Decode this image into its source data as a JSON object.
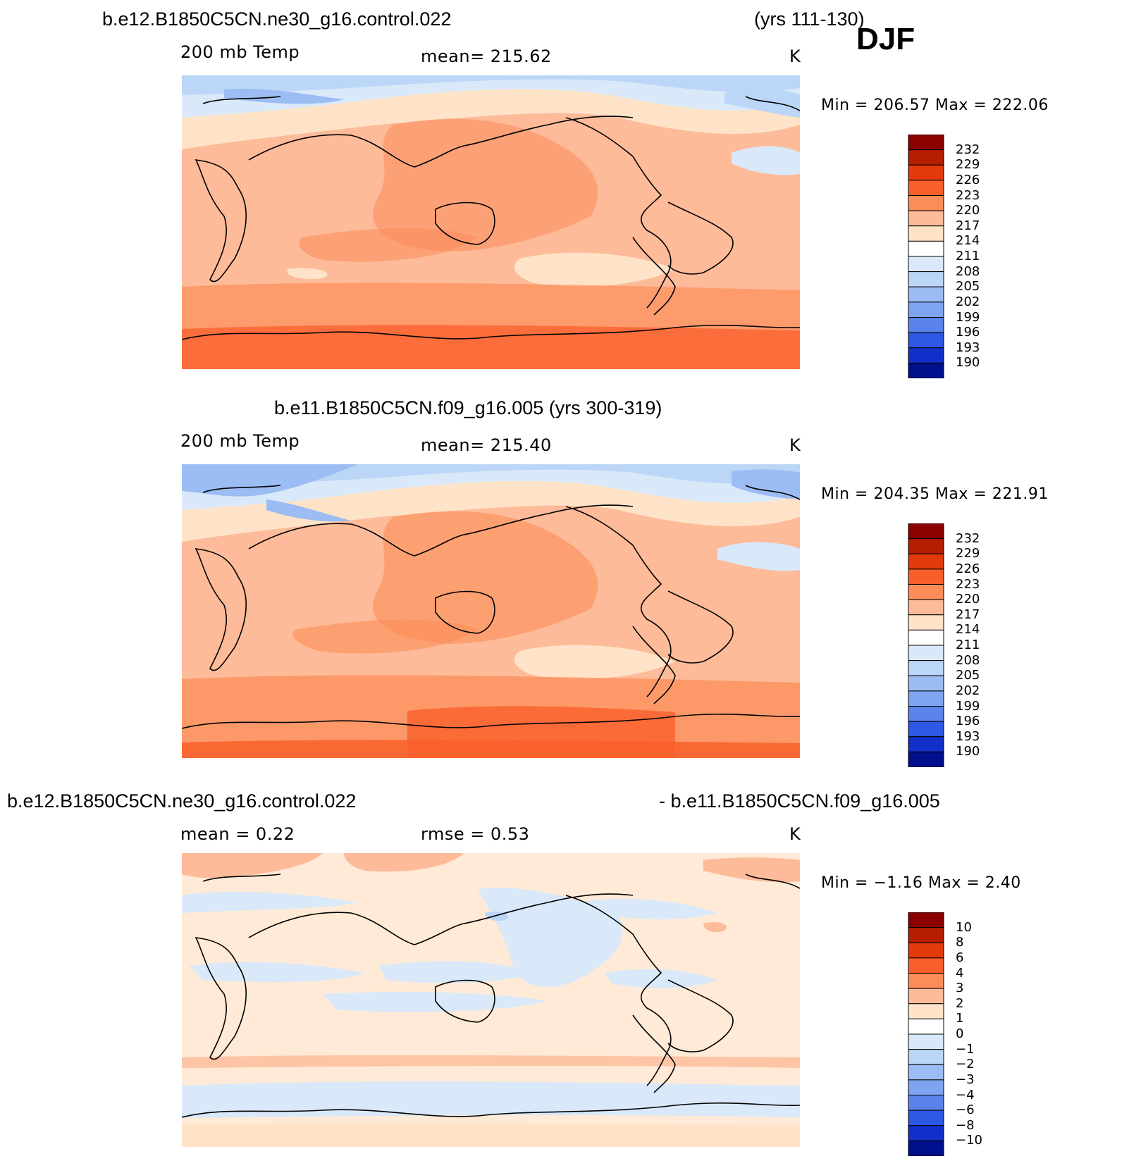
{
  "season": "DJF",
  "panels": [
    {
      "title": "b.e12.B1850C5CN.ne30_g16.control.022",
      "years": "(yrs 111-130)",
      "variable": "200 mb Temp",
      "mean_text": "mean=  215.62",
      "units": "K",
      "minmax_text": "Min  =  206.57  Max  =  222.06"
    },
    {
      "title": "b.e11.B1850C5CN.f09_g16.005 (yrs 300-319)",
      "variable": "200 mb Temp",
      "mean_text": "mean=  215.40",
      "units": "K",
      "minmax_text": "Min  =  204.35  Max  =  221.91"
    },
    {
      "title_left": "b.e12.B1850C5CN.ne30_g16.control.022",
      "title_right": "- b.e11.B1850C5CN.f09_g16.005",
      "mean_text": "mean  =     0.22",
      "rmse_text": "rmse  =     0.53",
      "units": "K",
      "minmax_text": "Min  =    −1.16  Max  =     2.40"
    }
  ],
  "chart_data": [
    {
      "type": "heatmap",
      "title": "b.e12.B1850C5CN.ne30_g16.control.022 (yrs 111-130) DJF",
      "subtitle": "200 mb Temp",
      "units": "K",
      "mean": 215.62,
      "min": 206.57,
      "max": 222.06,
      "colorbar_levels": [
        "232",
        "229",
        "226",
        "223",
        "220",
        "217",
        "214",
        "211",
        "208",
        "205",
        "202",
        "199",
        "196",
        "193",
        "190"
      ],
      "colorbar_colors": [
        "#8b0000",
        "#b51e00",
        "#e23a0a",
        "#f95f2b",
        "#fc8d59",
        "#fdbb99",
        "#fee3c8",
        "#ffffff",
        "#d9e9f9",
        "#bcd6f7",
        "#9cbdf3",
        "#7ea4f0",
        "#5a83ec",
        "#2e57e3",
        "#1130c9",
        "#000f8b"
      ]
    },
    {
      "type": "heatmap",
      "title": "b.e11.B1850C5CN.f09_g16.005 (yrs 300-319)",
      "subtitle": "200 mb Temp",
      "units": "K",
      "mean": 215.4,
      "min": 204.35,
      "max": 221.91,
      "colorbar_levels": [
        "232",
        "229",
        "226",
        "223",
        "220",
        "217",
        "214",
        "211",
        "208",
        "205",
        "202",
        "199",
        "196",
        "193",
        "190"
      ],
      "colorbar_colors": [
        "#8b0000",
        "#b51e00",
        "#e23a0a",
        "#f95f2b",
        "#fc8d59",
        "#fdbb99",
        "#fee3c8",
        "#ffffff",
        "#d9e9f9",
        "#bcd6f7",
        "#9cbdf3",
        "#7ea4f0",
        "#5a83ec",
        "#2e57e3",
        "#1130c9",
        "#000f8b"
      ]
    },
    {
      "type": "heatmap",
      "title": "b.e12.B1850C5CN.ne30_g16.control.022 - b.e11.B1850C5CN.f09_g16.005",
      "units": "K",
      "mean": 0.22,
      "rmse": 0.53,
      "min": -1.16,
      "max": 2.4,
      "colorbar_levels": [
        "10",
        "8",
        "6",
        "4",
        "3",
        "2",
        "1",
        "0",
        "−1",
        "−2",
        "−3",
        "−4",
        "−6",
        "−8",
        "−10"
      ],
      "colorbar_colors": [
        "#8b0000",
        "#b51e00",
        "#e23a0a",
        "#f95f2b",
        "#fc8d59",
        "#fdbb99",
        "#fee3c8",
        "#ffffff",
        "#d9e9f9",
        "#bcd6f7",
        "#9cbdf3",
        "#7ea4f0",
        "#5a83ec",
        "#2e57e3",
        "#1130c9",
        "#000f8b"
      ]
    }
  ]
}
